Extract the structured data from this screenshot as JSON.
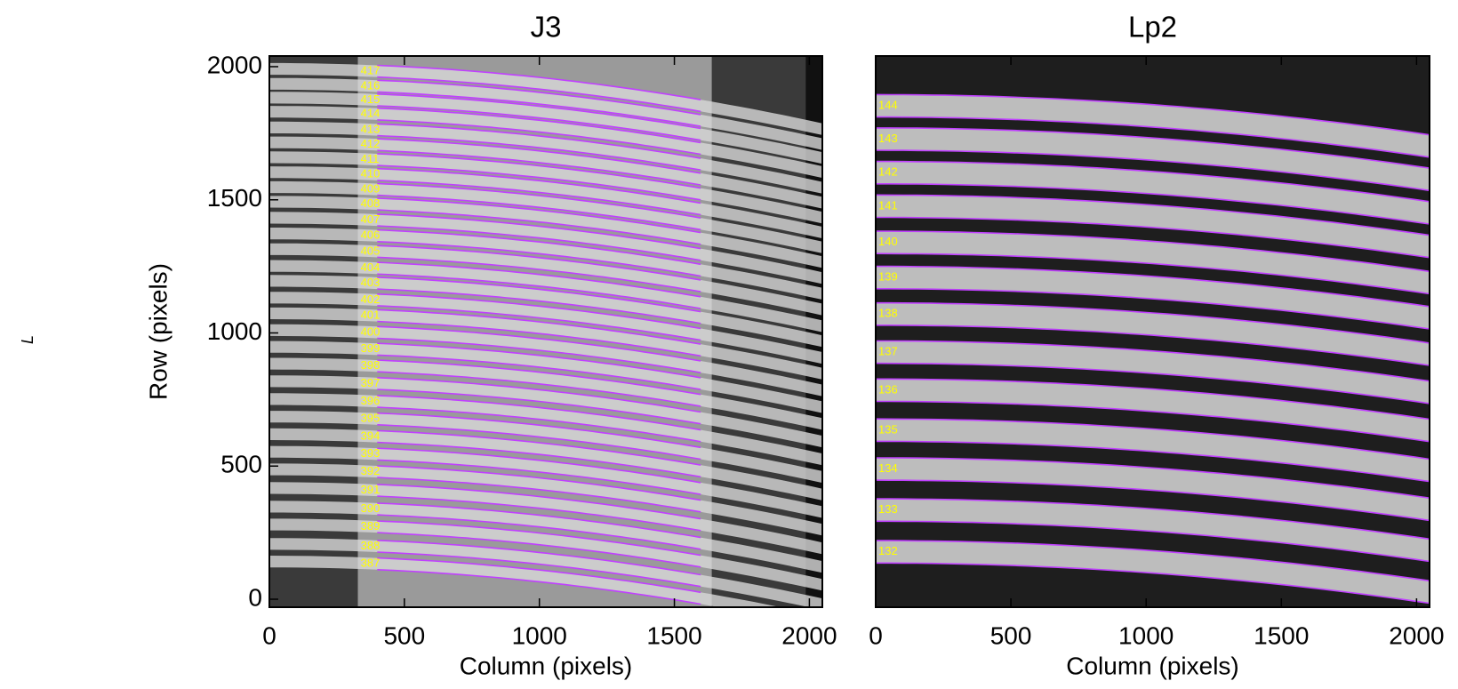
{
  "chart_data": [
    {
      "type": "image",
      "title": "J3",
      "xlabel": "Column (pixels)",
      "ylabel": "Row (pixels)",
      "annotation": "L",
      "xlim": [
        0,
        2048
      ],
      "ylim": [
        -30,
        2040
      ],
      "xticks": [
        0,
        500,
        1000,
        1500,
        2000
      ],
      "yticks": [
        0,
        500,
        1000,
        1500,
        2000
      ],
      "trace_color": "#c040ff",
      "label_color": "#ffff00",
      "orders": {
        "labels": [
          "417",
          "416",
          "415",
          "414",
          "413",
          "412",
          "411",
          "410",
          "409",
          "408",
          "407",
          "406",
          "405",
          "404",
          "403",
          "402",
          "401",
          "400",
          "399",
          "398",
          "397",
          "396",
          "395",
          "394",
          "393",
          "392",
          "391",
          "390",
          "389",
          "388",
          "387"
        ],
        "rows": [
          1983,
          1927,
          1875,
          1822,
          1763,
          1707,
          1651,
          1595,
          1539,
          1484,
          1424,
          1365,
          1306,
          1243,
          1187,
          1124,
          1065,
          1002,
          939,
          876,
          810,
          743,
          677,
          611,
          545,
          479,
          409,
          339,
          272,
          199,
          133
        ]
      }
    },
    {
      "type": "image",
      "title": "Lp2",
      "xlabel": "Column (pixels)",
      "xlim": [
        0,
        2048
      ],
      "ylim": [
        -30,
        2040
      ],
      "xticks": [
        0,
        500,
        1000,
        1500,
        2000
      ],
      "trace_color": "#c040ff",
      "label_color": "#ffff00",
      "orders": {
        "labels": [
          "144",
          "143",
          "142",
          "141",
          "140",
          "139",
          "138",
          "137",
          "136",
          "135",
          "134",
          "133",
          "132"
        ],
        "rows": [
          1853,
          1728,
          1602,
          1476,
          1340,
          1208,
          1071,
          928,
          785,
          635,
          489,
          335,
          178
        ]
      }
    }
  ]
}
